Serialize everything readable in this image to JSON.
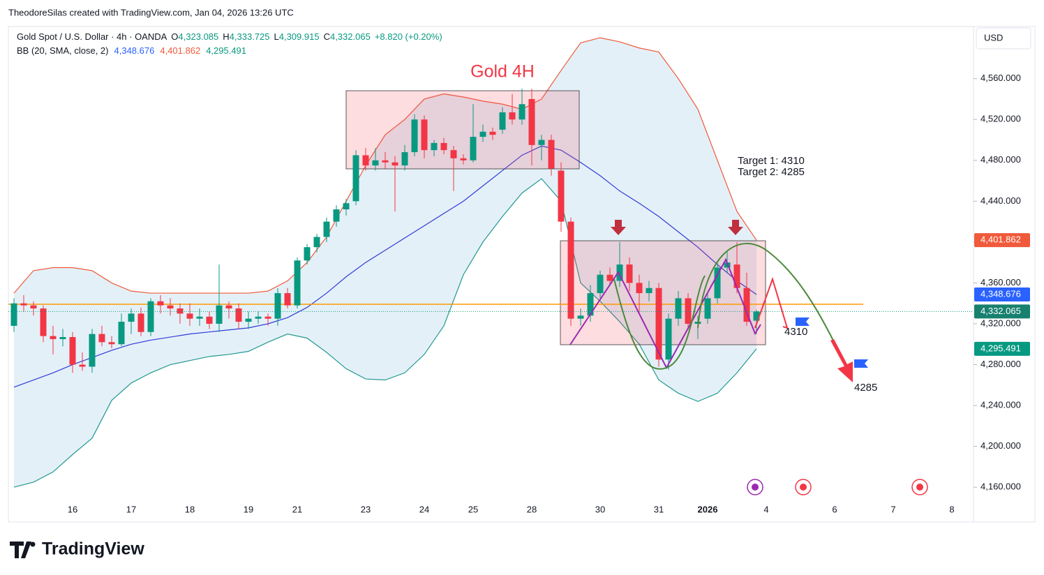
{
  "header": {
    "author": "TheodoreSilas created with TradingView.com, Jan 04, 2026 13:26 UTC",
    "brand": "TradingView",
    "currency": "USD"
  },
  "chart_data": {
    "type": "candlestick",
    "title": "Gold 4H",
    "symbol": "Gold Spot / U.S. Dollar · 4h · OANDA",
    "ohlc_legend": [
      {
        "label": "O",
        "value": "4,323.085"
      },
      {
        "label": "H",
        "value": "4,333.725"
      },
      {
        "label": "L",
        "value": "4,309.915"
      },
      {
        "label": "C",
        "value": "4,332.065"
      }
    ],
    "change": "+8.820 (+0.20%)",
    "indicator": "BB (20, SMA, close, 2)",
    "annotations": {
      "target1": "Target 1: 4310",
      "target2": "Target 2: 4285",
      "label1": "4310",
      "label2": "4285"
    },
    "categories": [
      null,
      null,
      null,
      null,
      null,
      null,
      "16",
      null,
      null,
      null,
      null,
      null,
      "17",
      null,
      null,
      null,
      null,
      null,
      "18",
      null,
      null,
      null,
      null,
      null,
      "19",
      null,
      null,
      null,
      null,
      "21",
      null,
      null,
      null,
      null,
      null,
      null,
      "23",
      null,
      null,
      null,
      null,
      null,
      "24",
      null,
      null,
      null,
      null,
      "25",
      null,
      null,
      null,
      null,
      null,
      "28",
      null,
      null,
      null,
      null,
      null,
      null,
      "30",
      null,
      null,
      null,
      null,
      null,
      "31",
      null,
      null,
      null,
      null,
      "2026",
      null,
      null,
      null,
      null,
      null,
      "4",
      null,
      null,
      null,
      null,
      null,
      null,
      "6",
      null,
      null,
      null,
      null,
      null,
      "7",
      null,
      null,
      null,
      null,
      null,
      "8",
      null
    ],
    "candles": [
      [
        4318,
        4345,
        4312,
        4340
      ],
      [
        4340,
        4348,
        4332,
        4338
      ],
      [
        4338,
        4342,
        4328,
        4335
      ],
      [
        4335,
        4338,
        4302,
        4308
      ],
      [
        4308,
        4318,
        4290,
        4305
      ],
      [
        4305,
        4315,
        4298,
        4307
      ],
      [
        4307,
        4312,
        4272,
        4280
      ],
      [
        4280,
        4292,
        4274,
        4278
      ],
      [
        4278,
        4315,
        4272,
        4310
      ],
      [
        4310,
        4318,
        4298,
        4302
      ],
      [
        4302,
        4308,
        4296,
        4300
      ],
      [
        4300,
        4330,
        4298,
        4322
      ],
      [
        4322,
        4335,
        4310,
        4330
      ],
      [
        4330,
        4336,
        4308,
        4312
      ],
      [
        4312,
        4345,
        4308,
        4342
      ],
      [
        4342,
        4348,
        4330,
        4338
      ],
      [
        4338,
        4345,
        4328,
        4335
      ],
      [
        4335,
        4340,
        4320,
        4330
      ],
      [
        4330,
        4340,
        4318,
        4325
      ],
      [
        4325,
        4335,
        4318,
        4327
      ],
      [
        4327,
        4332,
        4315,
        4320
      ],
      [
        4320,
        4378,
        4312,
        4338
      ],
      [
        4338,
        4342,
        4325,
        4335
      ],
      [
        4335,
        4340,
        4315,
        4322
      ],
      [
        4322,
        4332,
        4315,
        4325
      ],
      [
        4325,
        4332,
        4320,
        4327
      ],
      [
        4327,
        4330,
        4318,
        4325
      ],
      [
        4325,
        4355,
        4318,
        4350
      ],
      [
        4350,
        4355,
        4335,
        4338
      ],
      [
        4338,
        4385,
        4335,
        4382
      ],
      [
        4382,
        4398,
        4378,
        4395
      ],
      [
        4395,
        4408,
        4390,
        4405
      ],
      [
        4405,
        4424,
        4400,
        4420
      ],
      [
        4420,
        4436,
        4415,
        4432
      ],
      [
        4432,
        4442,
        4426,
        4438
      ],
      [
        4440,
        4490,
        4436,
        4485
      ],
      [
        4485,
        4492,
        4470,
        4475
      ],
      [
        4475,
        4492,
        4470,
        4480
      ],
      [
        4480,
        4488,
        4472,
        4478
      ],
      [
        4478,
        4484,
        4430,
        4475
      ],
      [
        4475,
        4495,
        4470,
        4488
      ],
      [
        4488,
        4525,
        4484,
        4520
      ],
      [
        4520,
        4524,
        4482,
        4490
      ],
      [
        4490,
        4500,
        4484,
        4497
      ],
      [
        4497,
        4502,
        4486,
        4490
      ],
      [
        4490,
        4494,
        4450,
        4482
      ],
      [
        4482,
        4486,
        4476,
        4480
      ],
      [
        4480,
        4535,
        4478,
        4503
      ],
      [
        4503,
        4515,
        4498,
        4508
      ],
      [
        4508,
        4512,
        4500,
        4505
      ],
      [
        4510,
        4532,
        4506,
        4527
      ],
      [
        4527,
        4545,
        4515,
        4520
      ],
      [
        4520,
        4550,
        4515,
        4535
      ],
      [
        4540,
        4550,
        4475,
        4495
      ],
      [
        4495,
        4505,
        4480,
        4500
      ],
      [
        4500,
        4505,
        4465,
        4472
      ],
      [
        4470,
        4478,
        4410,
        4420
      ],
      [
        4420,
        4424,
        4318,
        4325
      ],
      [
        4325,
        4335,
        4318,
        4328
      ],
      [
        4328,
        4358,
        4322,
        4350
      ],
      [
        4350,
        4372,
        4345,
        4368
      ],
      [
        4368,
        4375,
        4358,
        4362
      ],
      [
        4362,
        4400,
        4356,
        4378
      ],
      [
        4378,
        4385,
        4352,
        4360
      ],
      [
        4360,
        4368,
        4330,
        4350
      ],
      [
        4350,
        4362,
        4342,
        4355
      ],
      [
        4355,
        4360,
        4278,
        4285
      ],
      [
        4285,
        4330,
        4275,
        4325
      ],
      [
        4325,
        4352,
        4318,
        4345
      ],
      [
        4345,
        4350,
        4315,
        4320
      ],
      [
        4320,
        4328,
        4305,
        4322
      ],
      [
        4325,
        4350,
        4320,
        4345
      ],
      [
        4345,
        4380,
        4340,
        4375
      ],
      [
        4375,
        4392,
        4370,
        4380
      ],
      [
        4378,
        4400,
        4350,
        4355
      ],
      [
        4355,
        4370,
        4318,
        4322
      ],
      [
        4323.085,
        4333.725,
        4309.915,
        4332.065
      ]
    ],
    "candle_colors": {
      "up": "#089981",
      "down": "#f23645"
    },
    "last_label": "4,332.065",
    "bands": [
      {
        "name": "basis",
        "color": "#2f3bd8",
        "x": [
          0,
          2,
          4,
          6,
          8,
          10,
          12,
          14,
          16,
          18,
          20,
          22,
          24,
          26,
          28,
          30,
          32,
          34,
          36,
          38,
          40,
          42,
          44,
          46,
          48,
          50,
          52,
          54,
          56,
          58,
          60,
          62,
          64,
          66,
          68,
          70,
          72,
          74,
          76
        ],
        "values": [
          4258,
          4265,
          4272,
          4280,
          4287,
          4294,
          4300,
          4304,
          4307,
          4310,
          4312,
          4314,
          4316,
          4320,
          4326,
          4336,
          4350,
          4366,
          4380,
          4392,
          4404,
          4416,
          4428,
          4440,
          4455,
          4470,
          4485,
          4494,
          4490,
          4478,
          4465,
          4450,
          4438,
          4425,
          4410,
          4395,
          4378,
          4362,
          4348.676
        ],
        "last_label": "4,348.676",
        "label_color": "#2962ff"
      },
      {
        "name": "upper",
        "color": "#f05a3a",
        "x": [
          0,
          2,
          4,
          6,
          8,
          10,
          12,
          14,
          16,
          18,
          20,
          22,
          24,
          26,
          28,
          30,
          32,
          34,
          36,
          38,
          40,
          42,
          44,
          46,
          48,
          50,
          52,
          54,
          56,
          58,
          60,
          62,
          64,
          66,
          68,
          70,
          72,
          74,
          76
        ],
        "values": [
          4350,
          4372,
          4375,
          4375,
          4372,
          4360,
          4352,
          4350,
          4350,
          4350,
          4350,
          4350,
          4350,
          4352,
          4362,
          4380,
          4405,
          4440,
          4475,
          4505,
          4520,
          4540,
          4545,
          4542,
          4538,
          4535,
          4530,
          4540,
          4568,
          4595,
          4600,
          4596,
          4590,
          4586,
          4560,
          4530,
          4480,
          4430,
          4401.862
        ],
        "last_label": "4,401.862",
        "label_color": "#f05a3a"
      },
      {
        "name": "lower",
        "color": "#22998f",
        "x": [
          0,
          2,
          4,
          6,
          8,
          10,
          12,
          14,
          16,
          18,
          20,
          22,
          24,
          26,
          28,
          30,
          32,
          34,
          36,
          38,
          40,
          42,
          44,
          46,
          48,
          50,
          52,
          54,
          56,
          58,
          60,
          62,
          64,
          66,
          68,
          70,
          72,
          74,
          76
        ],
        "values": [
          4160,
          4165,
          4175,
          4192,
          4208,
          4245,
          4262,
          4272,
          4280,
          4284,
          4288,
          4290,
          4293,
          4302,
          4310,
          4306,
          4292,
          4276,
          4266,
          4265,
          4272,
          4290,
          4318,
          4368,
          4400,
          4425,
          4448,
          4462,
          4440,
          4360,
          4342,
          4322,
          4300,
          4265,
          4252,
          4244,
          4252,
          4272,
          4295.491
        ],
        "last_label": "4,295.491",
        "label_color": "#089981"
      }
    ],
    "band_fill": "#e4f0f8",
    "ylim": [
      4126,
      4611
    ],
    "yticks": [
      {
        "value": 4160,
        "label": "4,160.000"
      },
      {
        "value": 4200,
        "label": "4,200.000"
      },
      {
        "value": 4240,
        "label": "4,240.000"
      },
      {
        "value": 4280,
        "label": "4,280.000"
      },
      {
        "value": 4320,
        "label": "4,320.000"
      },
      {
        "value": 4360,
        "label": "4,360.000"
      },
      {
        "value": 4400,
        "label": "4,400.000"
      },
      {
        "value": 4440,
        "label": "4,440.000"
      },
      {
        "value": 4480,
        "label": "4,480.000"
      },
      {
        "value": 4520,
        "label": "4,520.000"
      },
      {
        "value": 4560,
        "label": "4,560.000"
      }
    ],
    "grid": false
  }
}
